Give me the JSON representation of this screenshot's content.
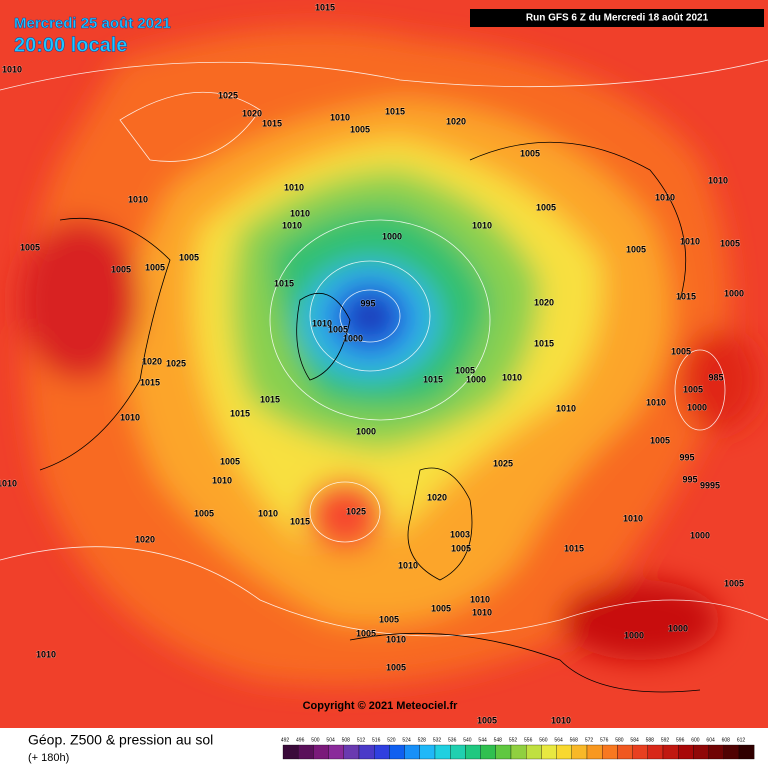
{
  "header": {
    "date": "Mercredi 25 août 2021",
    "time": "20:00 locale",
    "run": "Run GFS 6 Z du Mercredi 18 août 2021"
  },
  "copyright": "Copyright © 2021 Meteociel.fr",
  "footer": {
    "title": "Géop. Z500 & pression au sol",
    "lead": "(+ 180h)"
  },
  "colorbar": [
    492,
    496,
    500,
    504,
    508,
    512,
    516,
    520,
    524,
    528,
    532,
    536,
    540,
    544,
    548,
    552,
    556,
    560,
    564,
    568,
    572,
    576,
    580,
    584,
    588,
    592,
    596,
    600,
    604,
    608,
    612
  ],
  "isobar_labels": [
    "1015",
    "1010",
    "1025",
    "1020",
    "1015",
    "1010",
    "1015",
    "1005",
    "1020",
    "1005",
    "1010",
    "1010",
    "1010",
    "1010",
    "1005",
    "1010",
    "1010",
    "1010",
    "1000",
    "1005",
    "1005",
    "1005",
    "1005",
    "1005",
    "1010",
    "1005",
    "1015",
    "1015",
    "1000",
    "995",
    "1020",
    "1000",
    "1010",
    "1005",
    "1015",
    "1005",
    "1020",
    "1025",
    "1005",
    "1000",
    "1010",
    "1015",
    "1015",
    "985",
    "1005",
    "1010",
    "1015",
    "1015",
    "1000",
    "1010",
    "1010",
    "1000",
    "1005",
    "995",
    "1005",
    "1025",
    "995",
    "9995",
    "1010",
    "1010",
    "1020",
    "1005",
    "1010",
    "1015",
    "1025",
    "1003",
    "1010",
    "1000",
    "1005",
    "1020",
    "1015",
    "1010",
    "1005",
    "1010",
    "1005",
    "1005",
    "1005",
    "1010",
    "1010",
    "1000",
    "1000",
    "1010",
    "1005",
    "1005",
    "1010"
  ]
}
